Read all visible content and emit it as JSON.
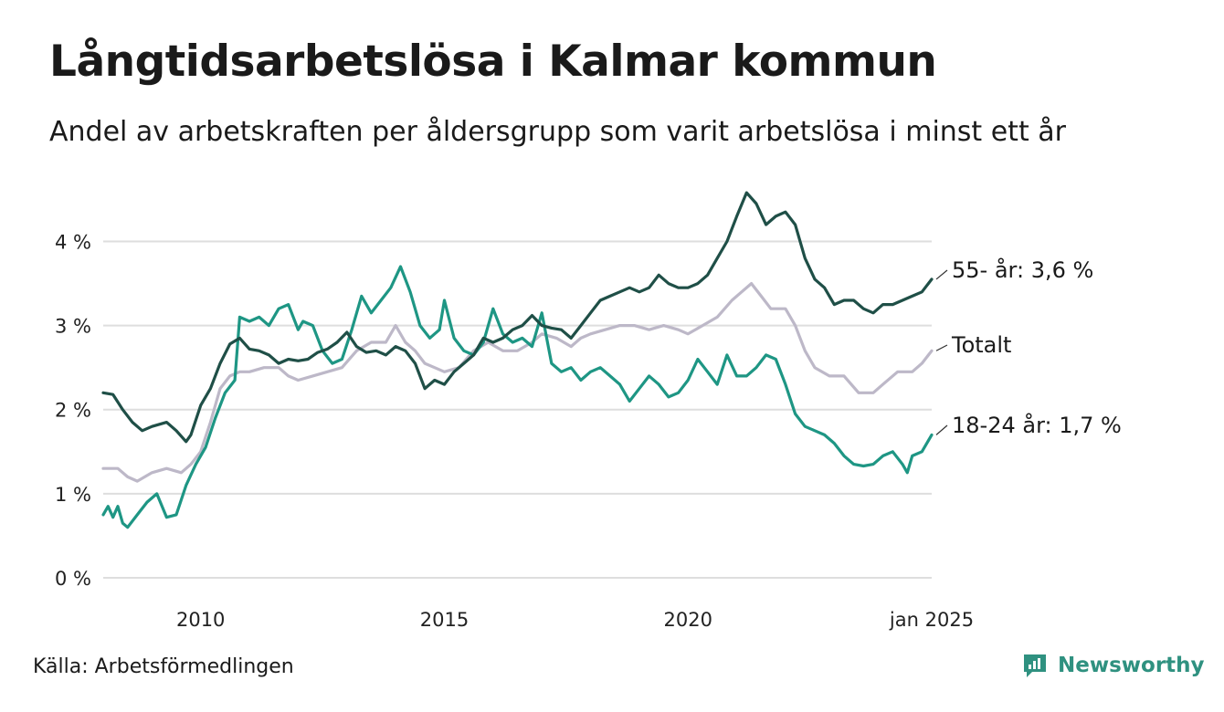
{
  "title": "Långtidsarbetslösa i Kalmar kommun",
  "subtitle": "Andel av arbetskraften per åldersgrupp som varit arbetslösa i minst ett år",
  "source": "Källa: Arbetsförmedlingen",
  "brand": "Newsworthy",
  "colors": {
    "series_55": "#1f4f47",
    "series_total": "#bdb8c8",
    "series_18_24": "#1e9684",
    "grid": "#dedede",
    "brand": "#2f9180"
  },
  "chart_data": {
    "type": "line",
    "x_unit": "year",
    "ylim": [
      0,
      4.6
    ],
    "xlim": [
      2008.0,
      2025.0
    ],
    "yticks": [
      0,
      1,
      2,
      3,
      4
    ],
    "ytick_labels": [
      "0 %",
      "1 %",
      "2 %",
      "3 %",
      "4 %"
    ],
    "xticks": [
      2010,
      2015,
      2020,
      2025
    ],
    "xtick_labels": [
      "2010",
      "2015",
      "2020",
      "jan 2025"
    ],
    "grid": true,
    "end_labels": [
      "55- år: 3,6 %",
      "Totalt",
      "18-24 år: 1,7 %"
    ],
    "series": [
      {
        "name": "55- år",
        "color": "#1f4f47",
        "points": [
          [
            2008.0,
            2.2
          ],
          [
            2008.2,
            2.18
          ],
          [
            2008.4,
            2.0
          ],
          [
            2008.6,
            1.85
          ],
          [
            2008.8,
            1.75
          ],
          [
            2009.0,
            1.8
          ],
          [
            2009.3,
            1.85
          ],
          [
            2009.5,
            1.75
          ],
          [
            2009.7,
            1.62
          ],
          [
            2009.8,
            1.7
          ],
          [
            2010.0,
            2.05
          ],
          [
            2010.2,
            2.25
          ],
          [
            2010.4,
            2.55
          ],
          [
            2010.6,
            2.78
          ],
          [
            2010.8,
            2.85
          ],
          [
            2011.0,
            2.72
          ],
          [
            2011.2,
            2.7
          ],
          [
            2011.4,
            2.65
          ],
          [
            2011.6,
            2.55
          ],
          [
            2011.8,
            2.6
          ],
          [
            2012.0,
            2.58
          ],
          [
            2012.2,
            2.6
          ],
          [
            2012.4,
            2.68
          ],
          [
            2012.6,
            2.72
          ],
          [
            2012.8,
            2.8
          ],
          [
            2013.0,
            2.92
          ],
          [
            2013.2,
            2.75
          ],
          [
            2013.4,
            2.68
          ],
          [
            2013.6,
            2.7
          ],
          [
            2013.8,
            2.65
          ],
          [
            2014.0,
            2.75
          ],
          [
            2014.2,
            2.7
          ],
          [
            2014.4,
            2.55
          ],
          [
            2014.6,
            2.25
          ],
          [
            2014.8,
            2.35
          ],
          [
            2015.0,
            2.3
          ],
          [
            2015.2,
            2.45
          ],
          [
            2015.4,
            2.55
          ],
          [
            2015.6,
            2.65
          ],
          [
            2015.8,
            2.85
          ],
          [
            2016.0,
            2.8
          ],
          [
            2016.2,
            2.85
          ],
          [
            2016.4,
            2.95
          ],
          [
            2016.6,
            3.0
          ],
          [
            2016.8,
            3.12
          ],
          [
            2017.0,
            3.0
          ],
          [
            2017.2,
            2.97
          ],
          [
            2017.4,
            2.95
          ],
          [
            2017.6,
            2.85
          ],
          [
            2017.8,
            3.0
          ],
          [
            2018.0,
            3.15
          ],
          [
            2018.2,
            3.3
          ],
          [
            2018.4,
            3.35
          ],
          [
            2018.6,
            3.4
          ],
          [
            2018.8,
            3.45
          ],
          [
            2019.0,
            3.4
          ],
          [
            2019.2,
            3.45
          ],
          [
            2019.4,
            3.6
          ],
          [
            2019.6,
            3.5
          ],
          [
            2019.8,
            3.45
          ],
          [
            2020.0,
            3.45
          ],
          [
            2020.2,
            3.5
          ],
          [
            2020.4,
            3.6
          ],
          [
            2020.6,
            3.8
          ],
          [
            2020.8,
            4.0
          ],
          [
            2021.0,
            4.3
          ],
          [
            2021.2,
            4.58
          ],
          [
            2021.4,
            4.45
          ],
          [
            2021.6,
            4.2
          ],
          [
            2021.8,
            4.3
          ],
          [
            2022.0,
            4.35
          ],
          [
            2022.2,
            4.2
          ],
          [
            2022.4,
            3.8
          ],
          [
            2022.6,
            3.55
          ],
          [
            2022.8,
            3.45
          ],
          [
            2023.0,
            3.25
          ],
          [
            2023.2,
            3.3
          ],
          [
            2023.4,
            3.3
          ],
          [
            2023.6,
            3.2
          ],
          [
            2023.8,
            3.15
          ],
          [
            2024.0,
            3.25
          ],
          [
            2024.2,
            3.25
          ],
          [
            2024.4,
            3.3
          ],
          [
            2024.6,
            3.35
          ],
          [
            2024.8,
            3.4
          ],
          [
            2025.0,
            3.55
          ]
        ]
      },
      {
        "name": "Totalt",
        "color": "#bdb8c8",
        "points": [
          [
            2008.0,
            1.3
          ],
          [
            2008.3,
            1.3
          ],
          [
            2008.5,
            1.2
          ],
          [
            2008.7,
            1.15
          ],
          [
            2009.0,
            1.25
          ],
          [
            2009.3,
            1.3
          ],
          [
            2009.6,
            1.25
          ],
          [
            2009.8,
            1.35
          ],
          [
            2010.0,
            1.5
          ],
          [
            2010.2,
            1.85
          ],
          [
            2010.4,
            2.25
          ],
          [
            2010.6,
            2.4
          ],
          [
            2010.8,
            2.45
          ],
          [
            2011.0,
            2.45
          ],
          [
            2011.3,
            2.5
          ],
          [
            2011.6,
            2.5
          ],
          [
            2011.8,
            2.4
          ],
          [
            2012.0,
            2.35
          ],
          [
            2012.3,
            2.4
          ],
          [
            2012.6,
            2.45
          ],
          [
            2012.9,
            2.5
          ],
          [
            2013.2,
            2.7
          ],
          [
            2013.5,
            2.8
          ],
          [
            2013.8,
            2.8
          ],
          [
            2014.0,
            3.0
          ],
          [
            2014.2,
            2.8
          ],
          [
            2014.4,
            2.7
          ],
          [
            2014.6,
            2.55
          ],
          [
            2014.8,
            2.5
          ],
          [
            2015.0,
            2.45
          ],
          [
            2015.3,
            2.5
          ],
          [
            2015.6,
            2.7
          ],
          [
            2015.9,
            2.8
          ],
          [
            2016.2,
            2.7
          ],
          [
            2016.5,
            2.7
          ],
          [
            2016.8,
            2.8
          ],
          [
            2017.0,
            2.9
          ],
          [
            2017.3,
            2.85
          ],
          [
            2017.6,
            2.75
          ],
          [
            2017.8,
            2.85
          ],
          [
            2018.0,
            2.9
          ],
          [
            2018.3,
            2.95
          ],
          [
            2018.6,
            3.0
          ],
          [
            2018.9,
            3.0
          ],
          [
            2019.2,
            2.95
          ],
          [
            2019.5,
            3.0
          ],
          [
            2019.8,
            2.95
          ],
          [
            2020.0,
            2.9
          ],
          [
            2020.3,
            3.0
          ],
          [
            2020.6,
            3.1
          ],
          [
            2020.9,
            3.3
          ],
          [
            2021.1,
            3.4
          ],
          [
            2021.3,
            3.5
          ],
          [
            2021.5,
            3.35
          ],
          [
            2021.7,
            3.2
          ],
          [
            2022.0,
            3.2
          ],
          [
            2022.2,
            3.0
          ],
          [
            2022.4,
            2.7
          ],
          [
            2022.6,
            2.5
          ],
          [
            2022.9,
            2.4
          ],
          [
            2023.2,
            2.4
          ],
          [
            2023.5,
            2.2
          ],
          [
            2023.8,
            2.2
          ],
          [
            2024.0,
            2.3
          ],
          [
            2024.3,
            2.45
          ],
          [
            2024.6,
            2.45
          ],
          [
            2024.8,
            2.55
          ],
          [
            2025.0,
            2.7
          ]
        ]
      },
      {
        "name": "18-24 år",
        "color": "#1e9684",
        "points": [
          [
            2008.0,
            0.75
          ],
          [
            2008.1,
            0.85
          ],
          [
            2008.2,
            0.72
          ],
          [
            2008.3,
            0.85
          ],
          [
            2008.4,
            0.65
          ],
          [
            2008.5,
            0.6
          ],
          [
            2008.7,
            0.75
          ],
          [
            2008.9,
            0.9
          ],
          [
            2009.1,
            1.0
          ],
          [
            2009.3,
            0.72
          ],
          [
            2009.5,
            0.75
          ],
          [
            2009.7,
            1.1
          ],
          [
            2009.9,
            1.35
          ],
          [
            2010.1,
            1.55
          ],
          [
            2010.3,
            1.9
          ],
          [
            2010.5,
            2.2
          ],
          [
            2010.7,
            2.35
          ],
          [
            2010.8,
            3.1
          ],
          [
            2011.0,
            3.05
          ],
          [
            2011.2,
            3.1
          ],
          [
            2011.4,
            3.0
          ],
          [
            2011.6,
            3.2
          ],
          [
            2011.8,
            3.25
          ],
          [
            2012.0,
            2.95
          ],
          [
            2012.1,
            3.05
          ],
          [
            2012.3,
            3.0
          ],
          [
            2012.5,
            2.7
          ],
          [
            2012.7,
            2.55
          ],
          [
            2012.9,
            2.6
          ],
          [
            2013.1,
            2.95
          ],
          [
            2013.3,
            3.35
          ],
          [
            2013.5,
            3.15
          ],
          [
            2013.7,
            3.3
          ],
          [
            2013.9,
            3.45
          ],
          [
            2014.1,
            3.7
          ],
          [
            2014.3,
            3.4
          ],
          [
            2014.5,
            3.0
          ],
          [
            2014.7,
            2.85
          ],
          [
            2014.9,
            2.95
          ],
          [
            2015.0,
            3.3
          ],
          [
            2015.2,
            2.85
          ],
          [
            2015.4,
            2.7
          ],
          [
            2015.6,
            2.65
          ],
          [
            2015.8,
            2.8
          ],
          [
            2016.0,
            3.2
          ],
          [
            2016.2,
            2.9
          ],
          [
            2016.4,
            2.8
          ],
          [
            2016.6,
            2.85
          ],
          [
            2016.8,
            2.75
          ],
          [
            2017.0,
            3.15
          ],
          [
            2017.2,
            2.55
          ],
          [
            2017.4,
            2.45
          ],
          [
            2017.6,
            2.5
          ],
          [
            2017.8,
            2.35
          ],
          [
            2018.0,
            2.45
          ],
          [
            2018.2,
            2.5
          ],
          [
            2018.4,
            2.4
          ],
          [
            2018.6,
            2.3
          ],
          [
            2018.8,
            2.1
          ],
          [
            2019.0,
            2.25
          ],
          [
            2019.2,
            2.4
          ],
          [
            2019.4,
            2.3
          ],
          [
            2019.6,
            2.15
          ],
          [
            2019.8,
            2.2
          ],
          [
            2020.0,
            2.35
          ],
          [
            2020.2,
            2.6
          ],
          [
            2020.4,
            2.45
          ],
          [
            2020.6,
            2.3
          ],
          [
            2020.8,
            2.65
          ],
          [
            2021.0,
            2.4
          ],
          [
            2021.2,
            2.4
          ],
          [
            2021.4,
            2.5
          ],
          [
            2021.6,
            2.65
          ],
          [
            2021.8,
            2.6
          ],
          [
            2022.0,
            2.3
          ],
          [
            2022.2,
            1.95
          ],
          [
            2022.4,
            1.8
          ],
          [
            2022.6,
            1.75
          ],
          [
            2022.8,
            1.7
          ],
          [
            2023.0,
            1.6
          ],
          [
            2023.2,
            1.45
          ],
          [
            2023.4,
            1.35
          ],
          [
            2023.6,
            1.33
          ],
          [
            2023.8,
            1.35
          ],
          [
            2024.0,
            1.45
          ],
          [
            2024.2,
            1.5
          ],
          [
            2024.4,
            1.35
          ],
          [
            2024.5,
            1.25
          ],
          [
            2024.6,
            1.45
          ],
          [
            2024.8,
            1.5
          ],
          [
            2025.0,
            1.7
          ]
        ]
      }
    ]
  }
}
